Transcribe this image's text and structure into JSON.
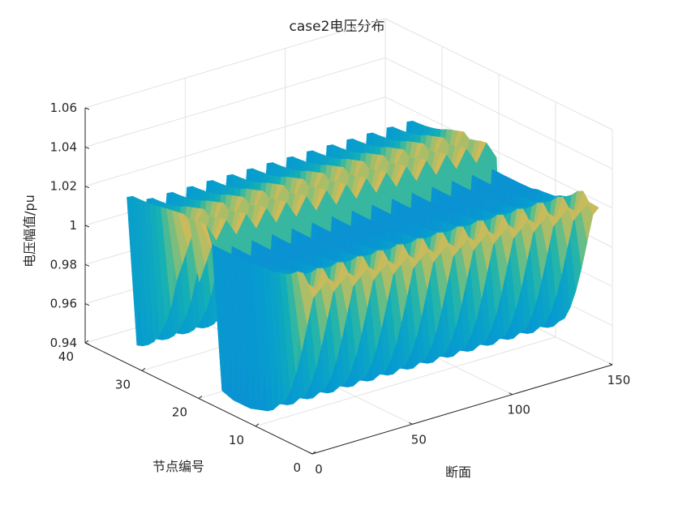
{
  "chart_data": {
    "type": "surface",
    "title": "case2电压分布",
    "xlabel": "断面",
    "ylabel": "节点编号",
    "zlabel": "电压幅值/pu",
    "xlim": [
      0,
      150
    ],
    "ylim": [
      0,
      40
    ],
    "zlim": [
      0.94,
      1.06
    ],
    "x_ticks": [
      "0",
      "50",
      "100",
      "150"
    ],
    "y_ticks": [
      "0",
      "10",
      "20",
      "30",
      "40"
    ],
    "z_ticks": [
      "0.94",
      "0.96",
      "0.98",
      "1",
      "1.02",
      "1.04",
      "1.06"
    ],
    "x_tick_values": [
      0,
      50,
      100,
      150
    ],
    "y_tick_values": [
      0,
      10,
      20,
      30,
      40
    ],
    "z_tick_values": [
      0.94,
      0.96,
      0.98,
      1.0,
      1.02,
      1.04,
      1.06
    ],
    "colormap": "parula",
    "grid": true,
    "nodes": [
      1,
      2,
      3,
      4,
      5,
      6,
      7,
      8,
      9,
      10,
      11,
      12,
      13,
      14,
      15,
      16,
      17,
      18,
      19,
      20,
      21,
      22,
      23,
      24,
      25,
      26,
      27,
      28,
      29,
      30,
      31,
      32,
      33
    ],
    "sections": [
      1,
      6,
      11,
      16,
      21,
      26,
      31,
      36,
      41,
      46,
      51,
      56,
      61,
      66,
      71,
      76,
      81,
      86,
      91,
      96,
      101,
      106,
      111,
      116,
      121,
      126,
      131,
      136,
      141,
      146
    ],
    "section_load_level": [
      0.05,
      1,
      0.1,
      1,
      0.1,
      1,
      0.1,
      1,
      0.1,
      1,
      0.1,
      1,
      0.1,
      1,
      0.1,
      1,
      0.1,
      1,
      0.1,
      1,
      0.1,
      1,
      0.1,
      1,
      0.1,
      1,
      0.1,
      1,
      0.1,
      1
    ],
    "node_voltage_light": [
      1.025,
      1.03,
      1.03,
      1.028,
      1.027,
      1.027,
      1.026,
      1.026,
      1.026,
      1.026,
      1.025,
      1.025,
      1.025,
      1.025,
      1.025,
      1.025,
      1.025,
      1.025,
      1.03,
      1.03,
      1.03,
      1.03,
      1.03,
      1.03,
      1.03,
      1.03,
      1.03,
      1.03,
      1.03,
      1.03,
      1.03,
      1.03,
      1.028
    ],
    "node_voltage_heavy": [
      1.02,
      1.015,
      1.0,
      0.985,
      0.972,
      0.962,
      0.955,
      0.952,
      0.948,
      0.946,
      0.945,
      0.944,
      0.943,
      0.943,
      0.943,
      0.943,
      0.944,
      0.945,
      1.02,
      1.015,
      1.005,
      0.995,
      1.02,
      1.01,
      1.0,
      0.99,
      0.975,
      0.965,
      0.958,
      0.953,
      0.95,
      0.948,
      0.947
    ]
  }
}
